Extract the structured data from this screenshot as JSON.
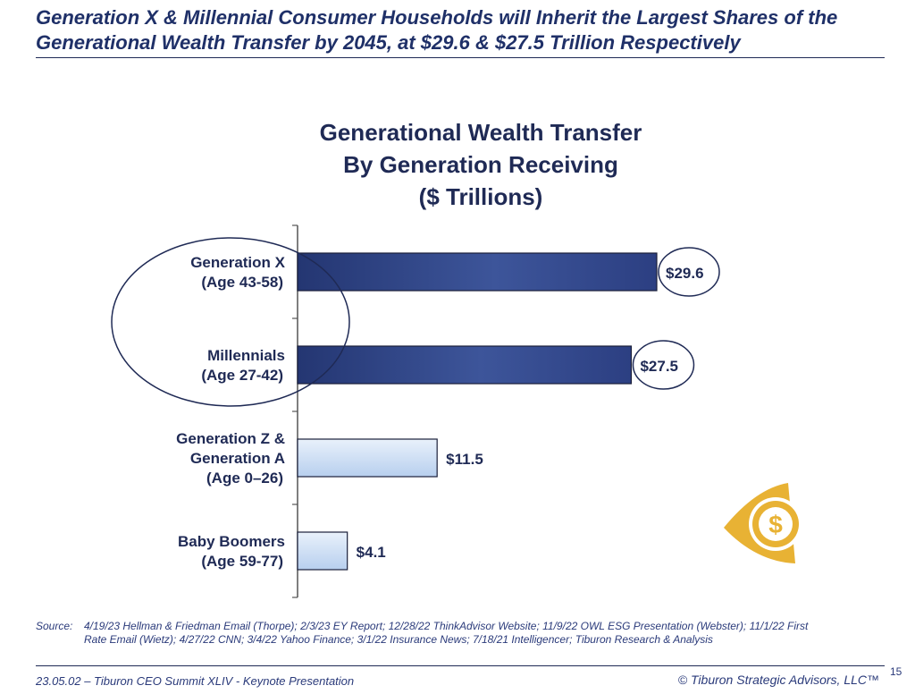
{
  "slide": {
    "headline": "Generation X & Millennial Consumer Households will Inherit the Largest Shares of the Generational Wealth Transfer by 2045, at $29.6 & $27.5 Trillion Respectively",
    "source_label": "Source:",
    "source_text": "4/19/23 Hellman & Friedman Email (Thorpe); 2/3/23 EY Report; 12/28/22 ThinkAdvisor Website; 11/9/22 OWL ESG Presentation (Webster); 11/1/22 First Rate Email (Wietz); 4/27/22 CNN; 3/4/22 Yahoo Finance; 3/1/22 Insurance News; 7/18/21 Intelligencer; Tiburon Research & Analysis",
    "footer_left": "23.05.02 – Tiburon CEO Summit XLIV - Keynote Presentation",
    "footer_right": "© Tiburon Strategic Advisors, LLC™",
    "page_number": "15",
    "logo_icon": "dollar-eye-logo-icon"
  },
  "chart_data": {
    "type": "bar",
    "orientation": "horizontal",
    "title_lines": [
      "Generational Wealth Transfer",
      "By Generation Receiving",
      "($ Trillions)"
    ],
    "categories": [
      [
        "Generation X",
        "(Age 43-58)"
      ],
      [
        "Millennials",
        "(Age 27-42)"
      ],
      [
        "Generation Z &",
        "Generation A",
        "(Age 0–26)"
      ],
      [
        "Baby Boomers",
        "(Age 59-77)"
      ]
    ],
    "values": [
      29.6,
      27.5,
      11.5,
      4.1
    ],
    "value_labels": [
      "$29.6",
      "$27.5",
      "$11.5",
      "$4.1"
    ],
    "xlim": [
      0,
      32
    ],
    "grid": false,
    "highlighted_categories": [
      0,
      1
    ],
    "colors": {
      "dark_bar": "#2c3f82",
      "light_bar": "#c9dcf4",
      "axis": "#555555",
      "text": "#1f2a55",
      "logo": "#e8b234"
    }
  }
}
